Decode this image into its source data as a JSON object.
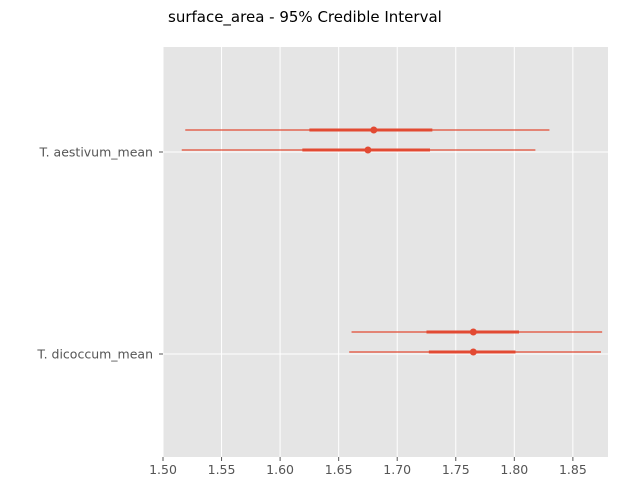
{
  "chart_data": {
    "type": "forest",
    "title": "surface_area - 95% Credible Interval",
    "xlabel": "",
    "ylabel": "",
    "xlim": [
      1.5,
      1.88
    ],
    "xticks": [
      1.5,
      1.55,
      1.6,
      1.65,
      1.7,
      1.75,
      1.8,
      1.85
    ],
    "xtick_labels": [
      "1.50",
      "1.55",
      "1.60",
      "1.65",
      "1.70",
      "1.75",
      "1.80",
      "1.85"
    ],
    "grid": true,
    "colors": {
      "interval": "#e24a33",
      "background": "#e5e5e5",
      "grid": "#ffffff"
    },
    "categories": [
      "T. aestivum_mean",
      "T. dicoccum_mean"
    ],
    "intervals": [
      {
        "category": "T. aestivum_mean",
        "chain": 1,
        "low95": 1.519,
        "low_iqr": 1.625,
        "mean": 1.68,
        "high_iqr": 1.73,
        "high95": 1.83
      },
      {
        "category": "T. aestivum_mean",
        "chain": 2,
        "low95": 1.516,
        "low_iqr": 1.619,
        "mean": 1.675,
        "high_iqr": 1.728,
        "high95": 1.818
      },
      {
        "category": "T. dicoccum_mean",
        "chain": 1,
        "low95": 1.661,
        "low_iqr": 1.725,
        "mean": 1.765,
        "high_iqr": 1.804,
        "high95": 1.875
      },
      {
        "category": "T. dicoccum_mean",
        "chain": 2,
        "low95": 1.659,
        "low_iqr": 1.727,
        "mean": 1.765,
        "high_iqr": 1.801,
        "high95": 1.874
      }
    ]
  }
}
